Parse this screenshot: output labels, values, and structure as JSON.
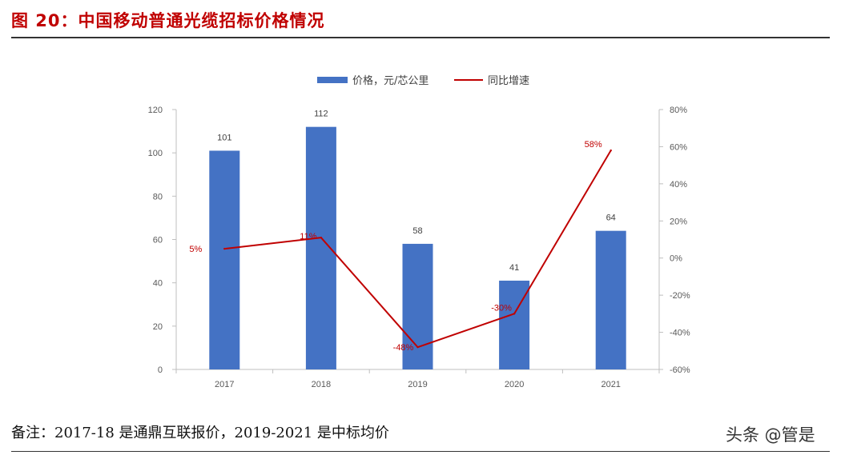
{
  "header": {
    "title": "图 20：中国移动普通光缆招标价格情况"
  },
  "footer": {
    "note": "备注：2017-18 是通鼎互联报价，2019-2021 是中标均价",
    "watermark": "头条 @管是"
  },
  "colors": {
    "bar": "#4472c4",
    "line": "#c00000",
    "title": "#c00000"
  },
  "chart_data": {
    "type": "bar",
    "categories": [
      "2017",
      "2018",
      "2019",
      "2020",
      "2021"
    ],
    "series": [
      {
        "name": "价格，元/芯公里",
        "type": "bar",
        "axis": "left",
        "values": [
          101,
          112,
          58,
          41,
          64
        ],
        "labels": [
          "101",
          "112",
          "58",
          "41",
          "64"
        ]
      },
      {
        "name": "同比增速",
        "type": "line",
        "axis": "right",
        "values": [
          5,
          11,
          -48,
          -30,
          58
        ],
        "labels": [
          "5%",
          "11%",
          "-48%",
          "-30%",
          "58%"
        ]
      }
    ],
    "y_left": {
      "min": 0,
      "max": 120,
      "ticks": [
        "0",
        "20",
        "40",
        "60",
        "80",
        "100",
        "120"
      ]
    },
    "y_right": {
      "min": -60,
      "max": 80,
      "ticks": [
        "-60%",
        "-40%",
        "-20%",
        "0%",
        "20%",
        "40%",
        "60%",
        "80%"
      ]
    },
    "grid": false,
    "legend": "top-center"
  }
}
